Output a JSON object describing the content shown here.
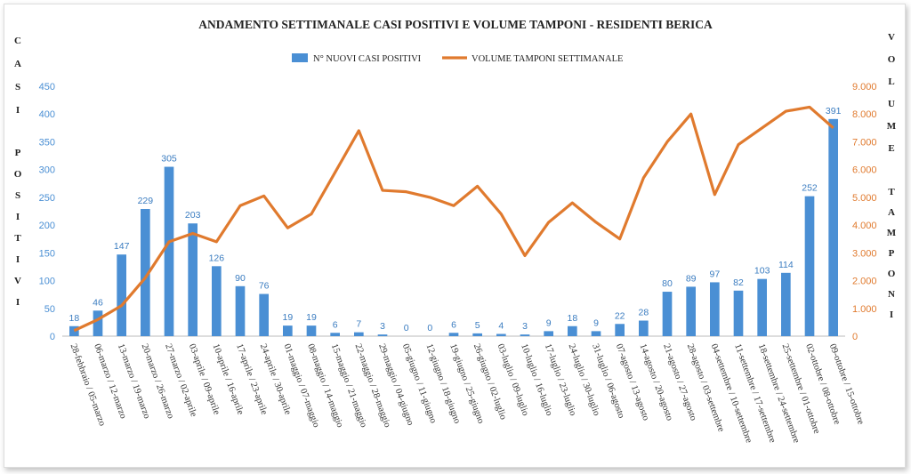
{
  "chart_data": {
    "type": "bar+line",
    "title": "ANDAMENTO SETTIMANALE CASI POSITIVI E VOLUME TAMPONI - RESIDENTI BERICA",
    "ylabel_left": [
      "CASI",
      "POSITIVI"
    ],
    "ylabel_right": [
      "VOLUME",
      "TAMPONI"
    ],
    "legend_position": "top-center",
    "ylim_left": [
      0,
      450
    ],
    "yticks_left": [
      "0",
      "50",
      "100",
      "150",
      "200",
      "250",
      "300",
      "350",
      "400",
      "450"
    ],
    "ylim_right": [
      0,
      9000
    ],
    "yticks_right": [
      "0",
      "1.000",
      "2.000",
      "3.000",
      "4.000",
      "5.000",
      "6.000",
      "7.000",
      "8.000",
      "9.000"
    ],
    "categories": [
      "28-febbraio / 05-marzo",
      "06-marzo / 12-marzo",
      "13-marzo / 19-marzo",
      "20-marzo / 26-marzo",
      "27-marzo / 02-aprile",
      "03-aprile / 09-aprile",
      "10-aprile / 16-aprile",
      "17-aprile / 23-aprile",
      "24-aprile / 30-aprile",
      "01-maggio / 07-maggio",
      "08-maggio / 14-maggio",
      "15-maggio / 21-maggio",
      "22-maggio / 28-maggio",
      "29-maggio / 04-giugno",
      "05-giugno / 11-giugno",
      "12-giugno / 18-giugno",
      "19-giugno / 25-giugno",
      "26-giugno / 02-luglio",
      "03-luglio / 09-luglio",
      "10-luglio / 16-luglio",
      "17-luglio / 23-luglio",
      "24-luglio / 30-luglio",
      "31-luglio / 06-agosto",
      "07-agosto / 13-agosto",
      "14-agosto / 20-agosto",
      "21-agosto / 27-agosto",
      "28-agosto / 03-settembre",
      "04-settembre / 10-settembre",
      "11-settembre / 17-settembre",
      "18-settembre / 24-settembre",
      "25-settembre / 01-ottobre",
      "02-ottobre / 08-ottobre",
      "09-ottobre / 15-ottobre"
    ],
    "series": [
      {
        "name": "N° NUOVI CASI POSITIVI",
        "type": "bar",
        "axis": "left",
        "color": "#4a8fd4",
        "values": [
          18,
          46,
          147,
          229,
          305,
          203,
          126,
          90,
          76,
          19,
          19,
          6,
          7,
          3,
          0,
          0,
          6,
          5,
          4,
          3,
          9,
          18,
          9,
          22,
          28,
          80,
          89,
          97,
          82,
          103,
          114,
          252,
          391
        ]
      },
      {
        "name": "VOLUME TAMPONI SETTIMANALE",
        "type": "line",
        "axis": "right",
        "color": "#e07a2e",
        "values": [
          200,
          600,
          1100,
          2100,
          3400,
          3700,
          3400,
          4700,
          5050,
          3900,
          4400,
          5900,
          7400,
          5250,
          5200,
          5000,
          4700,
          5400,
          4400,
          2900,
          4100,
          4800,
          4100,
          3500,
          5700,
          7000,
          8000,
          5100,
          6900,
          7500,
          8100,
          8250,
          7500
        ]
      }
    ]
  }
}
